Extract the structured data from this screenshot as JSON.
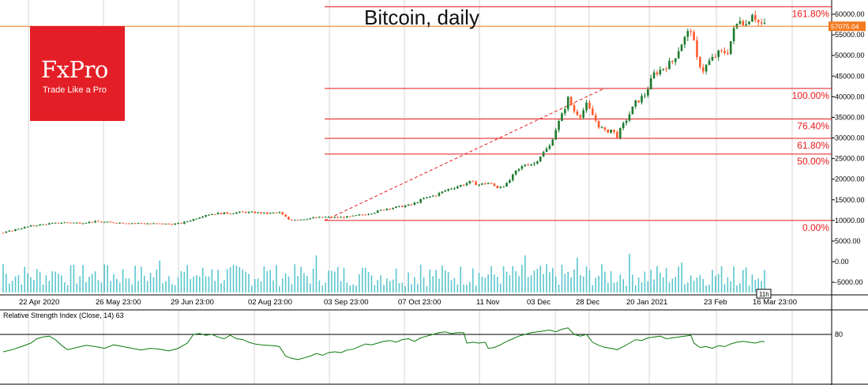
{
  "title": "Bitcoin, daily",
  "logo": {
    "name": "FxPro",
    "tagline": "Trade Like a Pro"
  },
  "colors": {
    "up": "#1e7a2e",
    "down": "#ff5a2e",
    "fib": "#e8191a",
    "volume": "#5bc6cf",
    "rsi": "#0a7a0a",
    "grid": "#d4d4d4",
    "price_tag": "#f4791f"
  },
  "chart_data": [
    {
      "type": "candlestick",
      "title": "Bitcoin, daily",
      "ylim": [
        0,
        62000
      ],
      "y_ticks": [
        "60000.00",
        "55000.00",
        "50000.00",
        "45000.00",
        "40000.00",
        "35000.00",
        "30000.00",
        "25000.00",
        "20000.00",
        "15000.00",
        "10000.00",
        "5000.00",
        "0.00",
        "-5000.00"
      ],
      "x_ticks": [
        "22 Apr 2020",
        "26 May 23:00",
        "29 Jun 23:00",
        "02 Aug 23:00",
        "03 Sep 23:00",
        "07 Oct 23:00",
        "11 Nov",
        "03 Dec",
        "28 Dec",
        "20 Jan 2021",
        "23 Feb",
        "16 Mar 23:00"
      ],
      "current_price": "57075.04",
      "fib_levels": [
        {
          "label": "161.80%",
          "value": 61800
        },
        {
          "label": "100.00%",
          "value": 42000
        },
        {
          "label": "76.40%",
          "value": 34600
        },
        {
          "label": "61.80%",
          "value": 29900
        },
        {
          "label": "50.00%",
          "value": 26100
        },
        {
          "label": "0.00%",
          "value": 10000
        }
      ],
      "trend_line": {
        "from": [
          "03 Sep 2020",
          10000
        ],
        "to": [
          "08 Jan 2021",
          42000
        ]
      },
      "price_path": [
        [
          0,
          7000
        ],
        [
          5,
          8000
        ],
        [
          10,
          8800
        ],
        [
          15,
          9200
        ],
        [
          20,
          9500
        ],
        [
          25,
          9400
        ],
        [
          30,
          9700
        ],
        [
          35,
          9500
        ],
        [
          40,
          9400
        ],
        [
          45,
          9300
        ],
        [
          50,
          9200
        ],
        [
          55,
          9100
        ],
        [
          58,
          9300
        ],
        [
          62,
          10300
        ],
        [
          66,
          11400
        ],
        [
          70,
          11700
        ],
        [
          74,
          11800
        ],
        [
          78,
          12000
        ],
        [
          82,
          11900
        ],
        [
          86,
          11700
        ],
        [
          90,
          11900
        ],
        [
          93,
          10200
        ],
        [
          97,
          10300
        ],
        [
          101,
          10600
        ],
        [
          105,
          10800
        ],
        [
          109,
          10700
        ],
        [
          113,
          10900
        ],
        [
          117,
          11400
        ],
        [
          121,
          12000
        ],
        [
          125,
          12900
        ],
        [
          129,
          13300
        ],
        [
          133,
          13800
        ],
        [
          137,
          15300
        ],
        [
          141,
          16200
        ],
        [
          145,
          17600
        ],
        [
          149,
          18500
        ],
        [
          152,
          19300
        ],
        [
          155,
          18700
        ],
        [
          158,
          19100
        ],
        [
          161,
          18000
        ],
        [
          164,
          18800
        ],
        [
          167,
          21800
        ],
        [
          170,
          23600
        ],
        [
          173,
          23800
        ],
        [
          175,
          25700
        ],
        [
          178,
          28000
        ],
        [
          180,
          32200
        ],
        [
          182,
          35500
        ],
        [
          184,
          39500
        ],
        [
          186,
          36500
        ],
        [
          188,
          35500
        ],
        [
          190,
          38000
        ],
        [
          192,
          35500
        ],
        [
          194,
          33000
        ],
        [
          196,
          31500
        ],
        [
          198,
          32000
        ],
        [
          200,
          30500
        ],
        [
          203,
          34500
        ],
        [
          206,
          38500
        ],
        [
          209,
          40500
        ],
        [
          212,
          45500
        ],
        [
          215,
          47000
        ],
        [
          218,
          48500
        ],
        [
          221,
          53000
        ],
        [
          224,
          56500
        ],
        [
          226,
          49000
        ],
        [
          228,
          46500
        ],
        [
          230,
          48500
        ],
        [
          233,
          50500
        ],
        [
          236,
          51000
        ],
        [
          238,
          56000
        ],
        [
          240,
          59000
        ],
        [
          242,
          57500
        ],
        [
          244,
          60500
        ],
        [
          246,
          58000
        ],
        [
          248,
          57200
        ]
      ]
    },
    {
      "type": "line",
      "name": "Relative Strength Index (Close, 14) 63",
      "label_text": "Relative Strength Index (Close, 14)",
      "last_value": "63",
      "ylim": [
        0,
        100
      ],
      "y_ticks": [
        "80"
      ],
      "series": [
        [
          0,
          40
        ],
        [
          3,
          45
        ],
        [
          6,
          52
        ],
        [
          9,
          60
        ],
        [
          11,
          70
        ],
        [
          13,
          74
        ],
        [
          15,
          76
        ],
        [
          17,
          68
        ],
        [
          19,
          55
        ],
        [
          21,
          45
        ],
        [
          24,
          50
        ],
        [
          27,
          55
        ],
        [
          30,
          52
        ],
        [
          33,
          48
        ],
        [
          36,
          56
        ],
        [
          39,
          52
        ],
        [
          42,
          48
        ],
        [
          45,
          44
        ],
        [
          48,
          48
        ],
        [
          51,
          46
        ],
        [
          54,
          42
        ],
        [
          57,
          48
        ],
        [
          60,
          60
        ],
        [
          62,
          80
        ],
        [
          64,
          82
        ],
        [
          66,
          78
        ],
        [
          68,
          80
        ],
        [
          70,
          74
        ],
        [
          72,
          70
        ],
        [
          74,
          78
        ],
        [
          76,
          70
        ],
        [
          78,
          68
        ],
        [
          80,
          62
        ],
        [
          82,
          58
        ],
        [
          84,
          56
        ],
        [
          86,
          55
        ],
        [
          88,
          54
        ],
        [
          90,
          52
        ],
        [
          92,
          30
        ],
        [
          94,
          25
        ],
        [
          96,
          22
        ],
        [
          98,
          26
        ],
        [
          100,
          30
        ],
        [
          102,
          36
        ],
        [
          104,
          32
        ],
        [
          106,
          38
        ],
        [
          108,
          40
        ],
        [
          110,
          38
        ],
        [
          112,
          44
        ],
        [
          114,
          46
        ],
        [
          116,
          52
        ],
        [
          118,
          58
        ],
        [
          120,
          56
        ],
        [
          122,
          60
        ],
        [
          124,
          64
        ],
        [
          126,
          66
        ],
        [
          128,
          62
        ],
        [
          130,
          68
        ],
        [
          132,
          70
        ],
        [
          134,
          64
        ],
        [
          136,
          72
        ],
        [
          138,
          76
        ],
        [
          140,
          80
        ],
        [
          142,
          84
        ],
        [
          144,
          86
        ],
        [
          146,
          82
        ],
        [
          148,
          84
        ],
        [
          150,
          84
        ],
        [
          151,
          60
        ],
        [
          153,
          62
        ],
        [
          155,
          60
        ],
        [
          157,
          62
        ],
        [
          158,
          48
        ],
        [
          160,
          50
        ],
        [
          162,
          56
        ],
        [
          164,
          64
        ],
        [
          166,
          70
        ],
        [
          168,
          76
        ],
        [
          170,
          80
        ],
        [
          172,
          84
        ],
        [
          174,
          86
        ],
        [
          176,
          88
        ],
        [
          178,
          90
        ],
        [
          180,
          86
        ],
        [
          182,
          92
        ],
        [
          184,
          95
        ],
        [
          186,
          80
        ],
        [
          188,
          76
        ],
        [
          190,
          80
        ],
        [
          192,
          62
        ],
        [
          194,
          55
        ],
        [
          196,
          50
        ],
        [
          198,
          48
        ],
        [
          200,
          45
        ],
        [
          202,
          52
        ],
        [
          204,
          60
        ],
        [
          206,
          68
        ],
        [
          208,
          66
        ],
        [
          210,
          72
        ],
        [
          212,
          74
        ],
        [
          214,
          76
        ],
        [
          216,
          70
        ],
        [
          218,
          72
        ],
        [
          220,
          74
        ],
        [
          222,
          76
        ],
        [
          224,
          78
        ],
        [
          225,
          60
        ],
        [
          227,
          50
        ],
        [
          229,
          52
        ],
        [
          231,
          48
        ],
        [
          233,
          54
        ],
        [
          235,
          52
        ],
        [
          237,
          58
        ],
        [
          239,
          62
        ],
        [
          241,
          64
        ],
        [
          243,
          62
        ],
        [
          245,
          60
        ],
        [
          247,
          64
        ],
        [
          248,
          63
        ]
      ]
    },
    {
      "type": "bar",
      "name": "volume",
      "note": "histogram bars beneath price",
      "values_shape": "ranged 2000 to 10000 (relative)"
    }
  ]
}
